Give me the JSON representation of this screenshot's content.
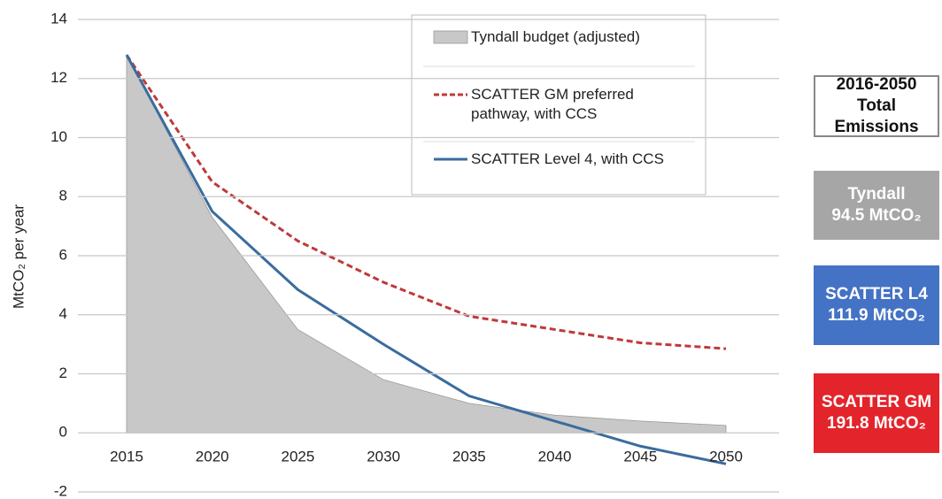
{
  "chart_data": {
    "type": "line",
    "y_label": "MtCO₂ per year",
    "categories": [
      "2015",
      "2020",
      "2025",
      "2030",
      "2035",
      "2040",
      "2045",
      "2050"
    ],
    "series": [
      {
        "name": "Tyndall budget (adjusted)",
        "kind": "area",
        "color": "#c8c8c8",
        "values": [
          12.8,
          7.3,
          3.5,
          1.8,
          1.0,
          0.6,
          0.4,
          0.25
        ]
      },
      {
        "name": "SCATTER GM preferred pathway, with CCS",
        "kind": "dashed",
        "color": "#c0393b",
        "values": [
          12.8,
          8.5,
          6.5,
          5.1,
          3.95,
          3.5,
          3.05,
          2.85
        ]
      },
      {
        "name": "SCATTER Level 4, with CCS",
        "kind": "line",
        "color": "#3a6c9e",
        "values": [
          12.8,
          7.5,
          4.85,
          3.0,
          1.25,
          0.4,
          -0.45,
          -1.05
        ]
      }
    ],
    "ylim": [
      -2,
      14
    ],
    "yticks": [
      -2,
      0,
      2,
      4,
      6,
      8,
      10,
      12,
      14
    ],
    "grid": true,
    "totals": {
      "title": "2016-2050 Total Emissions",
      "items": [
        {
          "name": "Tyndall",
          "label": "94.5 MtCO₂",
          "color": "#a6a6a6"
        },
        {
          "name": "SCATTER L4",
          "label": "111.9 MtCO₂",
          "color": "#4472c4"
        },
        {
          "name": "SCATTER GM",
          "label": "191.8 MtCO₂",
          "color": "#e3242b"
        }
      ]
    }
  }
}
